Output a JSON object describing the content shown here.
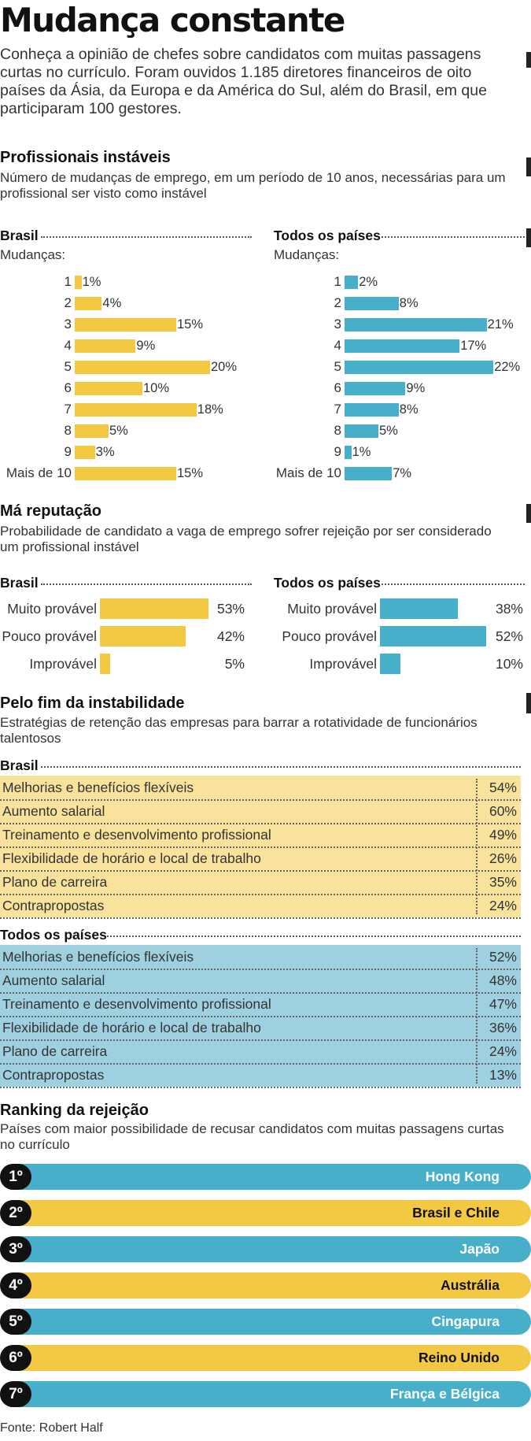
{
  "title": "Mudança constante",
  "intro": "Conheça a opinião de chefes sobre candidatos com muitas passagens curtas no currículo. Foram ouvidos 1.185 diretores financeiros de oito países da Ásia, da Europa e da América do Sul, além do Brasil, em que participaram 100 gestores.",
  "colors": {
    "yellow": "#F3C843",
    "blue": "#48AFCB",
    "yellow_panel": "#F8E29C",
    "blue_panel": "#9FD0E0",
    "dark": "#111111"
  },
  "sections": {
    "instaveis": {
      "title": "Profissionais instáveis",
      "subtitle": "Número de mudanças de emprego, em um período de 10 anos, necessárias para um profissional ser visto como instável"
    },
    "reputacao": {
      "title": "Má reputação",
      "subtitle": "Probabilidade de candidato a vaga de emprego sofrer rejeição por ser considerado um profissional instável"
    },
    "fim": {
      "title": "Pelo fim da instabilidade",
      "subtitle": "Estratégias de retenção das empresas para barrar a rotatividade de funcionários talentosos"
    },
    "ranking": {
      "title": "Ranking da rejeição",
      "subtitle": "Países com maior possibilidade de recusar candidatos com muitas passagens curtas no currículo"
    }
  },
  "source": "Fonte: Robert Half",
  "chart_data": [
    {
      "type": "bar",
      "orientation": "horizontal",
      "title": "Brasil",
      "ylabel": "Mudanças:",
      "categories": [
        "1",
        "2",
        "3",
        "4",
        "5",
        "6",
        "7",
        "8",
        "9",
        "Mais de 10"
      ],
      "values": [
        1,
        4,
        15,
        9,
        20,
        10,
        18,
        5,
        3,
        15
      ],
      "value_labels": [
        "1%",
        "4%",
        "15%",
        "9%",
        "20%",
        "10%",
        "18%",
        "5%",
        "3%",
        "15%"
      ],
      "unit": "%",
      "color": "#F3C843"
    },
    {
      "type": "bar",
      "orientation": "horizontal",
      "title": "Todos os países",
      "ylabel": "Mudanças:",
      "categories": [
        "1",
        "2",
        "3",
        "4",
        "5",
        "6",
        "7",
        "8",
        "9",
        "Mais de 10"
      ],
      "values": [
        2,
        8,
        21,
        17,
        22,
        9,
        8,
        5,
        1,
        7
      ],
      "value_labels": [
        "2%",
        "8%",
        "21%",
        "17%",
        "22%",
        "9%",
        "8%",
        "5%",
        "1%",
        "7%"
      ],
      "unit": "%",
      "color": "#48AFCB"
    },
    {
      "type": "bar",
      "orientation": "horizontal",
      "title": "Brasil",
      "categories": [
        "Muito provável",
        "Pouco provável",
        "Improvável"
      ],
      "values": [
        53,
        42,
        5
      ],
      "value_labels": [
        "53%",
        "42%",
        "5%"
      ],
      "unit": "%",
      "color": "#F3C843"
    },
    {
      "type": "bar",
      "orientation": "horizontal",
      "title": "Todos os países",
      "categories": [
        "Muito provável",
        "Pouco provável",
        "Improvável"
      ],
      "values": [
        38,
        52,
        10
      ],
      "value_labels": [
        "38%",
        "52%",
        "10%"
      ],
      "unit": "%",
      "color": "#48AFCB"
    },
    {
      "type": "table",
      "title": "Brasil",
      "rows": [
        {
          "label": "Melhorias e benefícios flexíveis",
          "value": "54%"
        },
        {
          "label": "Aumento salarial",
          "value": "60%"
        },
        {
          "label": "Treinamento e desenvolvimento profissional",
          "value": "49%"
        },
        {
          "label": "Flexibilidade de horário e local de trabalho",
          "value": "26%"
        },
        {
          "label": "Plano de carreira",
          "value": "35%"
        },
        {
          "label": "Contrapropostas",
          "value": "24%"
        }
      ],
      "color": "#F8E29C"
    },
    {
      "type": "table",
      "title": "Todos os países",
      "rows": [
        {
          "label": "Melhorias e benefícios flexíveis",
          "value": "52%"
        },
        {
          "label": "Aumento salarial",
          "value": "48%"
        },
        {
          "label": "Treinamento e desenvolvimento profissional",
          "value": "47%"
        },
        {
          "label": "Flexibilidade de horário e local de trabalho",
          "value": "36%"
        },
        {
          "label": "Plano de carreira",
          "value": "24%"
        },
        {
          "label": "Contrapropostas",
          "value": "13%"
        }
      ],
      "color": "#9FD0E0"
    },
    {
      "type": "table",
      "title": "Ranking da rejeição",
      "rows": [
        {
          "rank": "1º",
          "name": "Hong Kong",
          "color": "#48AFCB",
          "text_color": "#ffffff"
        },
        {
          "rank": "2º",
          "name": "Brasil e Chile",
          "color": "#F3C843",
          "text_color": "#111111"
        },
        {
          "rank": "3º",
          "name": "Japão",
          "color": "#48AFCB",
          "text_color": "#ffffff"
        },
        {
          "rank": "4º",
          "name": "Austrália",
          "color": "#F3C843",
          "text_color": "#111111"
        },
        {
          "rank": "5º",
          "name": "Cingapura",
          "color": "#48AFCB",
          "text_color": "#ffffff"
        },
        {
          "rank": "6º",
          "name": "Reino Unido",
          "color": "#F3C843",
          "text_color": "#111111"
        },
        {
          "rank": "7º",
          "name": "França e Bélgica",
          "color": "#48AFCB",
          "text_color": "#ffffff"
        }
      ]
    }
  ]
}
